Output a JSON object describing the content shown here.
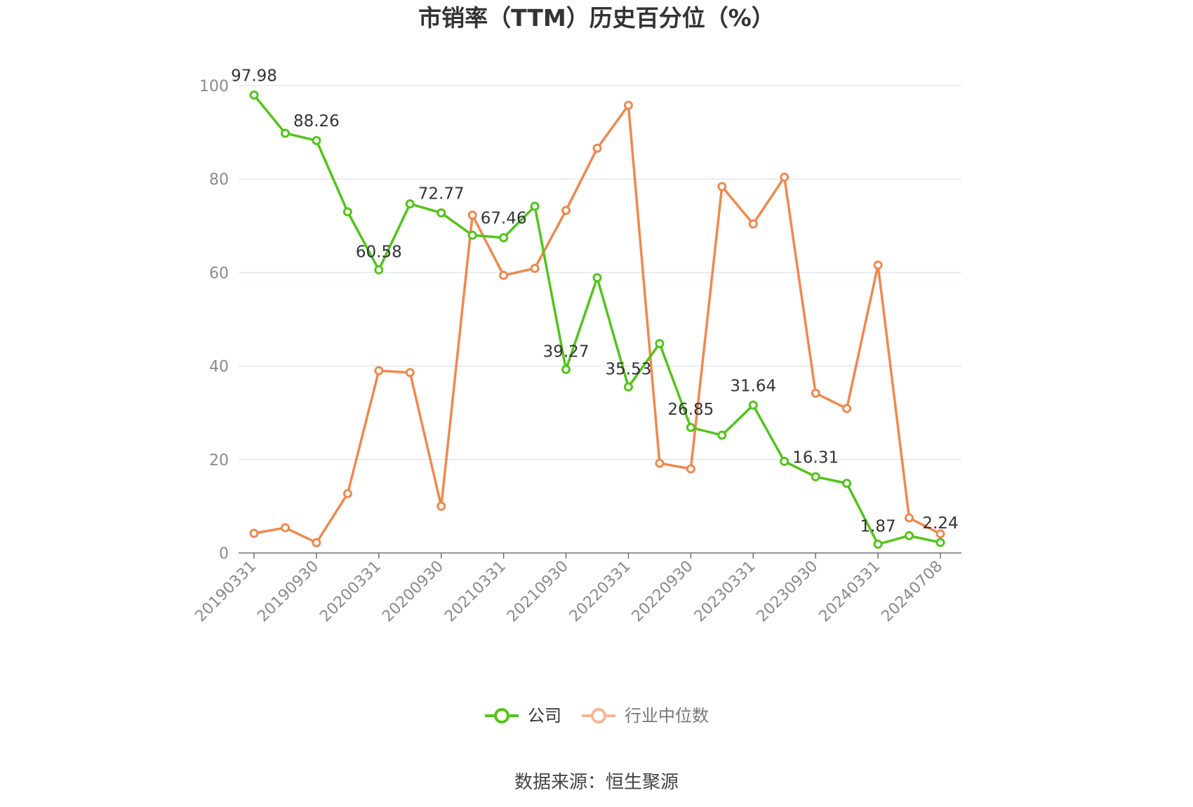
{
  "chart_data": {
    "type": "line",
    "title": "市销率（TTM）历史百分位（%）",
    "xlabel": "",
    "ylabel": "",
    "ylim": [
      0,
      100
    ],
    "y_ticks": [
      0,
      20,
      40,
      60,
      80,
      100
    ],
    "grid": "horizontal",
    "legend_position": "bottom",
    "x": [
      "20190331",
      "20190630",
      "20190930",
      "20191231",
      "20200331",
      "20200630",
      "20200930",
      "20201231",
      "20210331",
      "20210630",
      "20210930",
      "20211231",
      "20220331",
      "20220630",
      "20220930",
      "20221231",
      "20230331",
      "20230630",
      "20230930",
      "20231231",
      "20240331",
      "20240630",
      "20240708"
    ],
    "x_tick_labels": [
      "20190331",
      "20190930",
      "20200331",
      "20200930",
      "20210331",
      "20210930",
      "20220331",
      "20220930",
      "20230331",
      "20230930",
      "20240331",
      "20240708"
    ],
    "series": [
      {
        "name": "公司",
        "color": "#52c41a",
        "values": [
          97.98,
          89.8,
          88.26,
          73.0,
          60.58,
          74.7,
          72.77,
          68.0,
          67.46,
          74.2,
          39.27,
          58.9,
          35.53,
          44.8,
          26.85,
          25.2,
          31.64,
          19.6,
          16.31,
          14.9,
          1.87,
          3.7,
          2.24
        ],
        "labels": [
          "97.98",
          "",
          "88.26",
          "",
          "60.58",
          "",
          "72.77",
          "",
          "67.46",
          "",
          "39.27",
          "",
          "35.53",
          "",
          "26.85",
          "",
          "31.64",
          "",
          "16.31",
          "",
          "1.87",
          "",
          "2.24"
        ]
      },
      {
        "name": "行业中位数",
        "color": "#f0884e",
        "values": [
          4.2,
          5.4,
          2.2,
          12.7,
          39.0,
          38.6,
          10.0,
          72.3,
          59.4,
          60.9,
          73.3,
          86.6,
          95.8,
          19.2,
          18.0,
          78.4,
          70.4,
          80.4,
          34.2,
          30.9,
          61.6,
          7.5,
          4.1
        ]
      }
    ]
  },
  "legend": {
    "company": "公司",
    "industry": "行业中位数"
  },
  "source_note": "数据来源：恒生聚源"
}
